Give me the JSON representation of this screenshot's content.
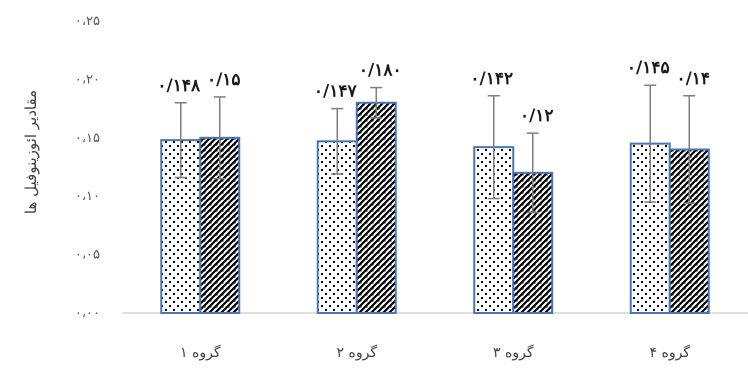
{
  "chart_data": {
    "type": "bar",
    "title": "",
    "xlabel": "",
    "ylabel": "مقادیر ائوزینوفیل ها",
    "ylim": [
      0,
      0.25
    ],
    "yticks": [
      "۰،۰۰",
      "۰،۰۵",
      "۰،۱۰",
      "۰،۱۵",
      "۰،۲۰",
      "۰،۲۵"
    ],
    "categories": [
      "گروه ۱",
      "گروه ۲",
      "گروه ۳",
      "گروه ۴"
    ],
    "grid": false,
    "legend": "none",
    "series": [
      {
        "pattern": "dots",
        "values": [
          0.148,
          0.147,
          0.142,
          0.145
        ],
        "error": [
          0.032,
          0.028,
          0.044,
          0.05
        ],
        "labels": [
          "۰/۱۴۸",
          "۰/۱۴۷",
          "۰/۱۴۲",
          "۰/۱۴۵"
        ]
      },
      {
        "pattern": "diagonal-checker",
        "values": [
          0.15,
          0.18,
          0.12,
          0.14
        ],
        "error": [
          0.035,
          0.013,
          0.034,
          0.046
        ],
        "labels": [
          "۰/۱۵",
          "۰/۱۸۰",
          "۰/۱۲",
          "۰/۱۴"
        ]
      }
    ],
    "colors": {
      "bar_border": "#4a76b8",
      "error_bar": "#7f7f7f",
      "axis": "#bfbfbf"
    }
  }
}
